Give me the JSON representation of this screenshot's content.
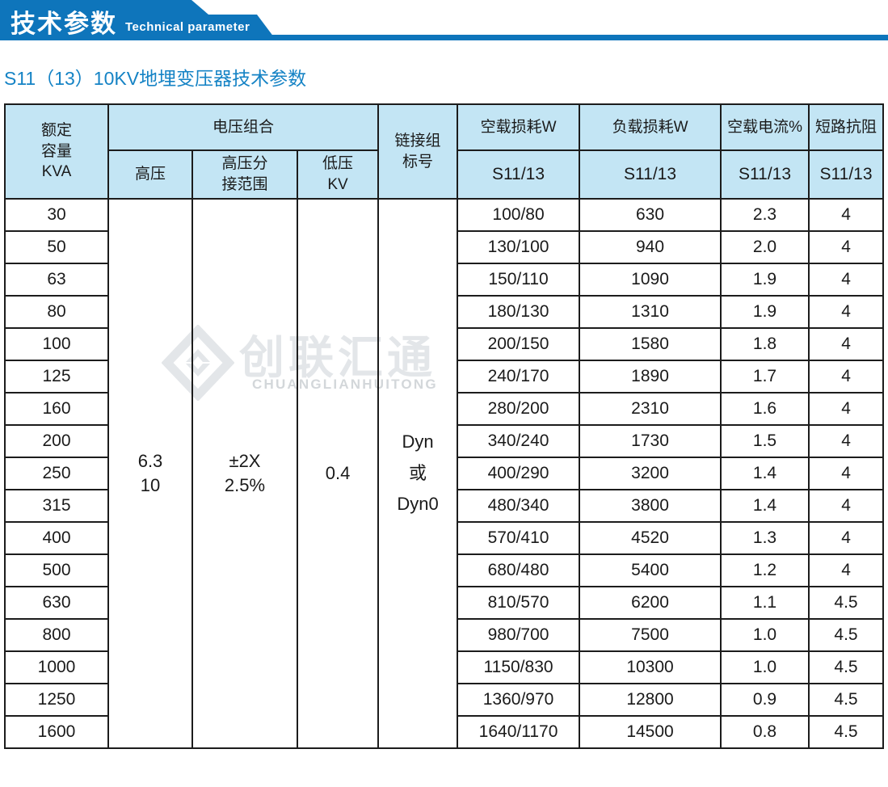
{
  "banner": {
    "title_cn": "技术参数",
    "title_en": "Technical parameter"
  },
  "subtitle": "S11（13）10KV地埋变压器技术参数",
  "colors": {
    "banner_blue": "#0e75bb",
    "subtitle_blue": "#1583c5",
    "table_header_fill": "#c3e5f4",
    "table_border": "#1c1c1c",
    "watermark_light": "#e3e6e9",
    "watermark_dark": "#d3d7da"
  },
  "watermark": {
    "logo_icon": "diamond-logo-icon",
    "text_cn": "创联汇通",
    "text_en": "CHUANGLIANHUITONG"
  },
  "table": {
    "header": {
      "capacity": "额定\n容量\nKVA",
      "voltage_group": "电压组合",
      "hv": "高压",
      "hv_tap": "高压分\n接范围",
      "lv": "低压\nKV",
      "vector_group": "链接组\n标号",
      "noload_loss": "空载损耗W",
      "load_loss": "负载损耗W",
      "noload_current": "空载电流%",
      "impedance": "短路抗阻",
      "model_noload": "S11/13",
      "model_load": "S11/13",
      "model_current": "S11/13",
      "model_impedance": "S11/13"
    },
    "merged": {
      "hv": "6.3\n10",
      "hv_tap": "±2X\n2.5%",
      "lv": "0.4",
      "vector": "Dyn\n或\nDyn0"
    },
    "rows": [
      {
        "capacity": "30",
        "noload_loss": "100/80",
        "load_loss": "630",
        "noload_current": "2.3",
        "impedance": "4"
      },
      {
        "capacity": "50",
        "noload_loss": "130/100",
        "load_loss": "940",
        "noload_current": "2.0",
        "impedance": "4"
      },
      {
        "capacity": "63",
        "noload_loss": "150/110",
        "load_loss": "1090",
        "noload_current": "1.9",
        "impedance": "4"
      },
      {
        "capacity": "80",
        "noload_loss": "180/130",
        "load_loss": "1310",
        "noload_current": "1.9",
        "impedance": "4"
      },
      {
        "capacity": "100",
        "noload_loss": "200/150",
        "load_loss": "1580",
        "noload_current": "1.8",
        "impedance": "4"
      },
      {
        "capacity": "125",
        "noload_loss": "240/170",
        "load_loss": "1890",
        "noload_current": "1.7",
        "impedance": "4"
      },
      {
        "capacity": "160",
        "noload_loss": "280/200",
        "load_loss": "2310",
        "noload_current": "1.6",
        "impedance": "4"
      },
      {
        "capacity": "200",
        "noload_loss": "340/240",
        "load_loss": "1730",
        "noload_current": "1.5",
        "impedance": "4"
      },
      {
        "capacity": "250",
        "noload_loss": "400/290",
        "load_loss": "3200",
        "noload_current": "1.4",
        "impedance": "4"
      },
      {
        "capacity": "315",
        "noload_loss": "480/340",
        "load_loss": "3800",
        "noload_current": "1.4",
        "impedance": "4"
      },
      {
        "capacity": "400",
        "noload_loss": "570/410",
        "load_loss": "4520",
        "noload_current": "1.3",
        "impedance": "4"
      },
      {
        "capacity": "500",
        "noload_loss": "680/480",
        "load_loss": "5400",
        "noload_current": "1.2",
        "impedance": "4"
      },
      {
        "capacity": "630",
        "noload_loss": "810/570",
        "load_loss": "6200",
        "noload_current": "1.1",
        "impedance": "4.5"
      },
      {
        "capacity": "800",
        "noload_loss": "980/700",
        "load_loss": "7500",
        "noload_current": "1.0",
        "impedance": "4.5"
      },
      {
        "capacity": "1000",
        "noload_loss": "1150/830",
        "load_loss": "10300",
        "noload_current": "1.0",
        "impedance": "4.5"
      },
      {
        "capacity": "1250",
        "noload_loss": "1360/970",
        "load_loss": "12800",
        "noload_current": "0.9",
        "impedance": "4.5"
      },
      {
        "capacity": "1600",
        "noload_loss": "1640/1170",
        "load_loss": "14500",
        "noload_current": "0.8",
        "impedance": "4.5"
      }
    ]
  }
}
